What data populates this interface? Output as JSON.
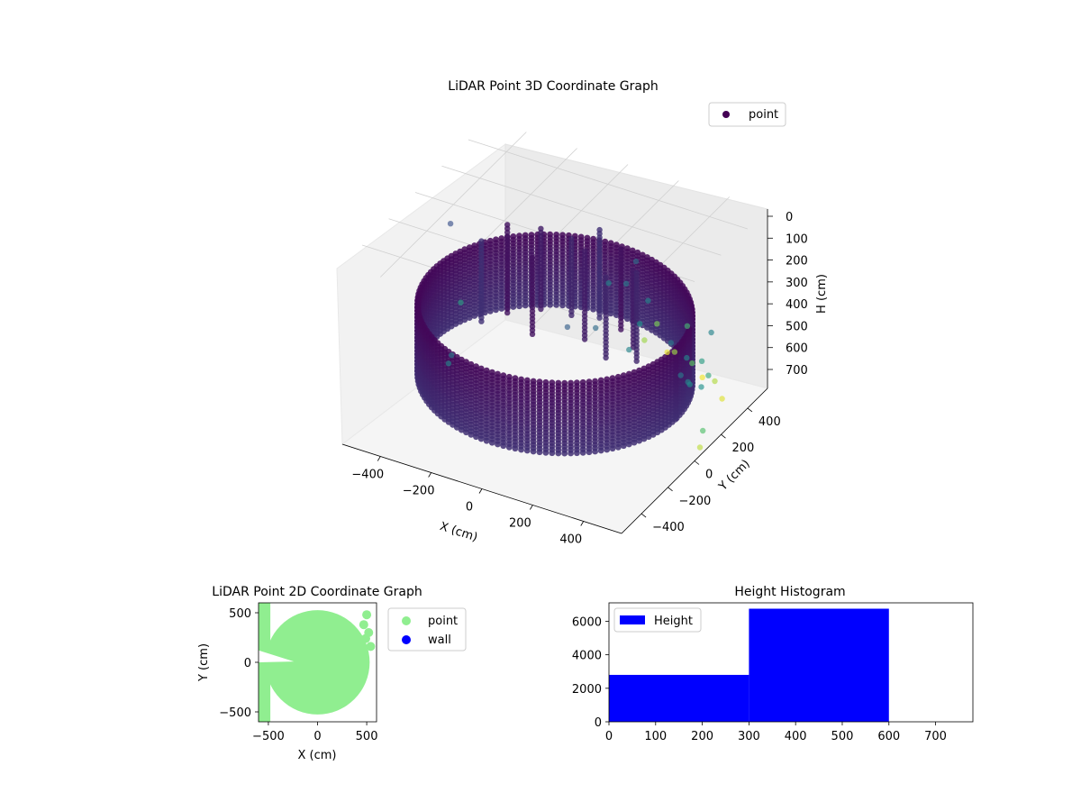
{
  "chart_data": [
    {
      "type": "scatter",
      "title": "LiDAR Point 3D Coordinate Graph",
      "xlabel": "X (cm)",
      "ylabel": "Y (cm)",
      "zlabel": "H (cm)",
      "xlim": [
        -550,
        550
      ],
      "ylim": [
        -550,
        550
      ],
      "zlim": [
        0,
        750
      ],
      "z_inverted": true,
      "x_ticks": [
        -400,
        -200,
        0,
        200,
        400
      ],
      "y_ticks": [
        -400,
        -200,
        0,
        200,
        400
      ],
      "z_ticks": [
        0,
        100,
        200,
        300,
        400,
        500,
        600,
        700
      ],
      "x_tick_labels": [
        "−400",
        "−200",
        "0",
        "200",
        "400"
      ],
      "y_tick_labels": [
        "−400",
        "−200",
        "0",
        "200",
        "400"
      ],
      "z_tick_labels": [
        "0",
        "100",
        "200",
        "300",
        "400",
        "500",
        "600",
        "700"
      ],
      "grid": true,
      "legend": [
        "point"
      ],
      "legend_position": "top-right",
      "colormap": "viridis",
      "series": [
        {
          "name": "point",
          "shape": "ring",
          "ring_radius_cm": 480,
          "ring_height_range_cm": [
            300,
            600
          ],
          "inner_structures_height_cm": [
            100,
            480
          ],
          "sparse_points": [
            [
              -470,
              120,
              720,
              0.4
            ],
            [
              -440,
              40,
              700,
              0.45
            ],
            [
              -380,
              -60,
              40,
              0.25
            ],
            [
              420,
              300,
              650,
              0.5
            ],
            [
              380,
              380,
              600,
              0.55
            ],
            [
              300,
              460,
              680,
              0.75
            ],
            [
              200,
              520,
              700,
              0.85
            ],
            [
              120,
              540,
              620,
              0.8
            ],
            [
              260,
              500,
              560,
              0.65
            ],
            [
              480,
              260,
              380,
              0.45
            ],
            [
              500,
              200,
              520,
              0.6
            ],
            [
              520,
              120,
              700,
              0.7
            ],
            [
              540,
              60,
              730,
              0.9
            ],
            [
              460,
              380,
              730,
              0.95
            ],
            [
              400,
              440,
              710,
              0.88
            ],
            [
              330,
              480,
              740,
              0.98
            ],
            [
              150,
              560,
              740,
              0.97
            ],
            [
              60,
              560,
              720,
              0.85
            ],
            [
              440,
              -140,
              40,
              0.45
            ],
            [
              470,
              -260,
              60,
              0.5
            ],
            [
              480,
              -360,
              110,
              0.45
            ],
            [
              380,
              -420,
              20,
              0.35
            ],
            [
              300,
              -480,
              10,
              0.3
            ],
            [
              520,
              -120,
              200,
              0.4
            ],
            [
              540,
              -40,
              300,
              0.45
            ],
            [
              500,
              60,
              480,
              0.5
            ],
            [
              430,
              180,
              560,
              0.45
            ],
            [
              360,
              260,
              600,
              0.4
            ],
            [
              -120,
              -480,
              50,
              0.55
            ],
            [
              100,
              420,
              300,
              0.35
            ],
            [
              30,
              480,
              450,
              0.4
            ],
            [
              -60,
              520,
              500,
              0.45
            ]
          ]
        }
      ]
    },
    {
      "type": "scatter",
      "title": "LiDAR Point 2D Coordinate Graph",
      "xlabel": "X (cm)",
      "ylabel": "Y (cm)",
      "xlim": [
        -600,
        600
      ],
      "ylim": [
        -600,
        600
      ],
      "x_ticks": [
        -500,
        0,
        500
      ],
      "y_ticks": [
        -500,
        0,
        500
      ],
      "x_tick_labels": [
        "−500",
        "0",
        "500"
      ],
      "y_tick_labels": [
        "−500",
        "0",
        "500"
      ],
      "legend": [
        {
          "label": "point",
          "color": "#90ee90"
        },
        {
          "label": "wall",
          "color": "#0000ff"
        }
      ],
      "legend_position": "outside-right",
      "series": [
        {
          "name": "point",
          "color": "#90ee90",
          "region": "disc",
          "radius_cm": 530,
          "gap_wedge_y_cm": [
            0,
            120
          ]
        },
        {
          "name": "wall",
          "color": "#0000ff",
          "points": []
        }
      ]
    },
    {
      "type": "bar",
      "title": "Height Histogram",
      "xlabel": "",
      "ylabel": "",
      "bins": [
        [
          0,
          300
        ],
        [
          300,
          600
        ]
      ],
      "values": [
        2800,
        6750
      ],
      "xlim": [
        0,
        780
      ],
      "ylim": [
        0,
        7100
      ],
      "x_ticks": [
        0,
        100,
        200,
        300,
        400,
        500,
        600,
        700
      ],
      "y_ticks": [
        0,
        2000,
        4000,
        6000
      ],
      "x_tick_labels": [
        "0",
        "100",
        "200",
        "300",
        "400",
        "500",
        "600",
        "700"
      ],
      "y_tick_labels": [
        "0",
        "2000",
        "4000",
        "6000"
      ],
      "color": "#0000ff",
      "legend": [
        "Height"
      ],
      "legend_position": "top-left",
      "grid": false
    }
  ]
}
